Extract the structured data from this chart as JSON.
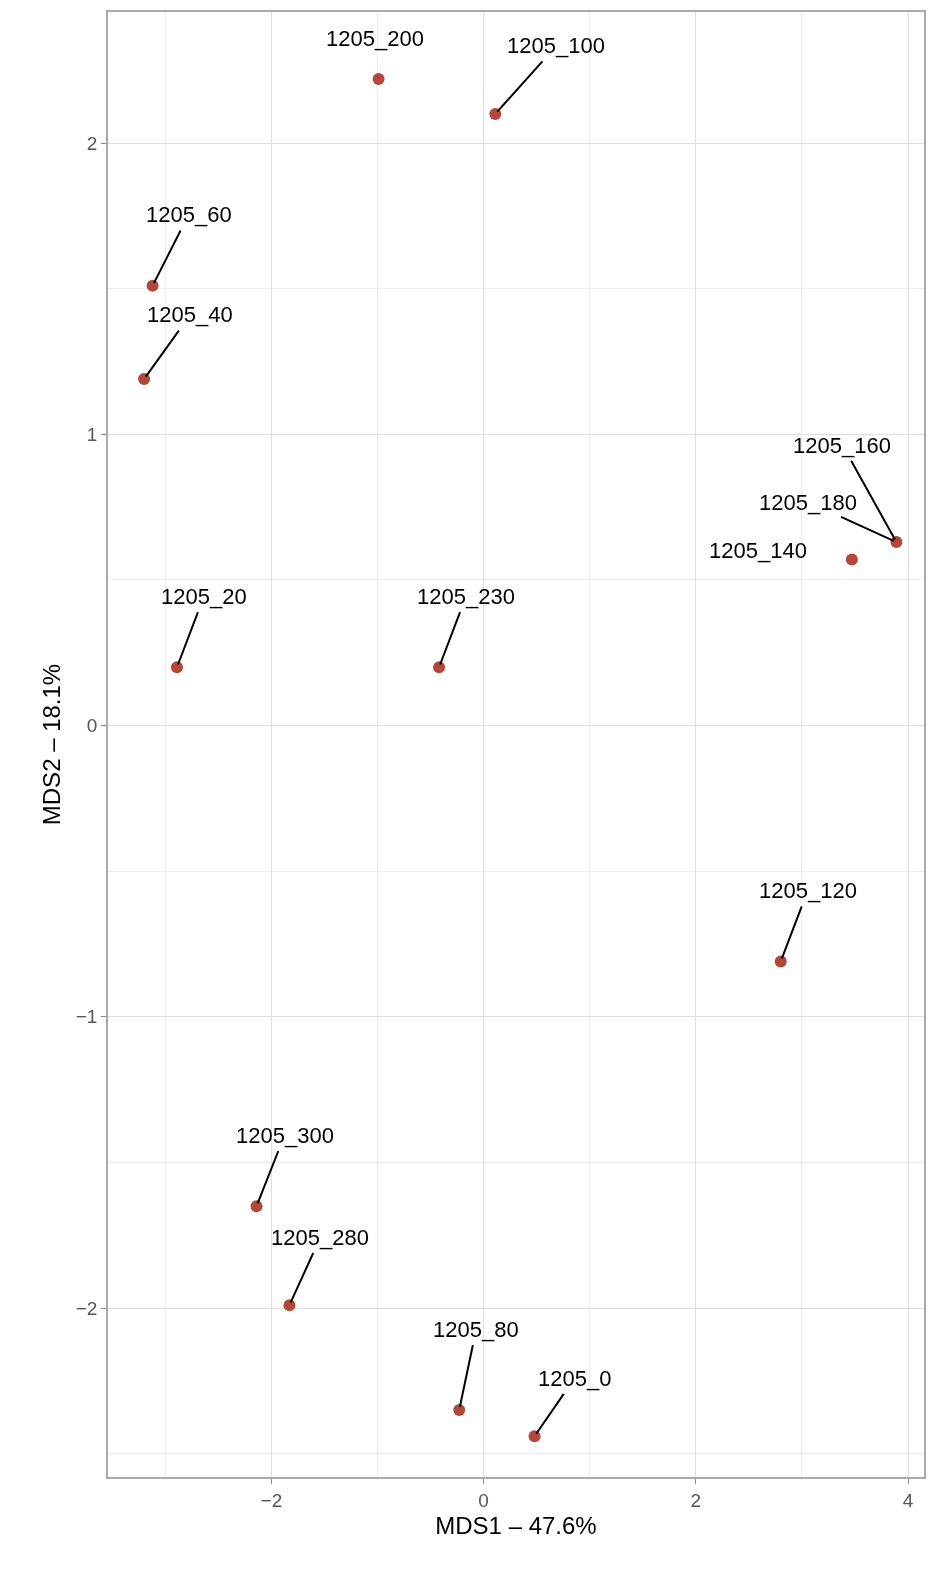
{
  "chart_data": {
    "type": "scatter",
    "xlabel": "MDS1 – 47.6%",
    "ylabel": "MDS2 – 18.1%",
    "x": [
      -0.99,
      0.11,
      -3.12,
      -3.2,
      3.89,
      3.47,
      -2.89,
      -0.42,
      2.8,
      -2.14,
      -1.83,
      -0.23,
      0.48
    ],
    "values": [
      2.22,
      2.1,
      1.51,
      1.19,
      0.63,
      0.57,
      0.2,
      0.2,
      -0.81,
      -1.65,
      -1.99,
      -2.35,
      -2.44
    ],
    "color": "#b1483a",
    "marker": "circle",
    "grid": true,
    "xlim": [
      -3.54,
      4.15
    ],
    "ylim": [
      -2.58,
      2.45
    ],
    "xticks": [
      {
        "value": -2,
        "label": "−2"
      },
      0,
      2,
      4
    ],
    "yticks": [
      {
        "value": -2,
        "label": "−2"
      },
      {
        "value": -1,
        "label": "−1"
      },
      0,
      1,
      2
    ],
    "annotations": [
      {
        "text": "1205_200",
        "x": -0.99,
        "y": 2.22
      },
      {
        "text": "1205_100",
        "x": 0.11,
        "y": 2.1
      },
      {
        "text": "1205_60",
        "x": -3.12,
        "y": 1.51
      },
      {
        "text": "1205_40",
        "x": -3.2,
        "y": 1.19
      },
      {
        "text": "1205_160",
        "x": 3.89,
        "y": 0.63
      },
      {
        "text": "1205_180",
        "x": 3.89,
        "y": 0.63
      },
      {
        "text": "1205_140",
        "x": 3.47,
        "y": 0.57
      },
      {
        "text": "1205_20",
        "x": -2.89,
        "y": 0.2
      },
      {
        "text": "1205_230",
        "x": -0.42,
        "y": 0.2
      },
      {
        "text": "1205_120",
        "x": 2.8,
        "y": -0.81
      },
      {
        "text": "1205_300",
        "x": -2.14,
        "y": -1.65
      },
      {
        "text": "1205_280",
        "x": -1.83,
        "y": -1.99
      },
      {
        "text": "1205_80",
        "x": -0.23,
        "y": -2.35
      },
      {
        "text": "1205_0",
        "x": 0.48,
        "y": -2.44
      }
    ]
  }
}
